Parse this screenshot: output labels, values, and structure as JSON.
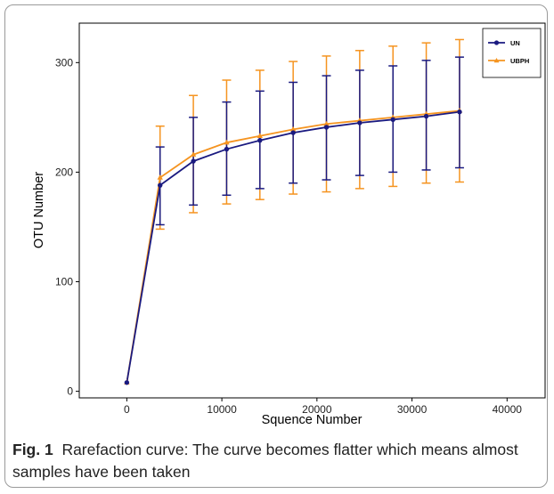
{
  "chart_data": {
    "type": "line",
    "xlabel": "Squence Number",
    "ylabel": "OTU Number",
    "xlim": [
      -5000,
      44000
    ],
    "ylim": [
      -6,
      336
    ],
    "xticks": [
      0,
      10000,
      20000,
      30000,
      40000
    ],
    "xtick_labels": [
      "0",
      "10000",
      "20000",
      "30000",
      "40000"
    ],
    "yticks": [
      0,
      100,
      200,
      300
    ],
    "ytick_labels": [
      "0",
      "100",
      "200",
      "300"
    ],
    "grid": false,
    "legend_position": "top-right",
    "x": [
      0,
      3500,
      7000,
      10500,
      14000,
      17500,
      21000,
      24500,
      28000,
      31500,
      35000
    ],
    "series": [
      {
        "name": "UN",
        "color": "#1a1a80",
        "marker": "circle",
        "values": [
          8,
          188,
          210,
          221,
          229,
          236,
          241,
          245,
          248,
          251,
          255
        ],
        "err_low": [
          8,
          152,
          170,
          179,
          185,
          190,
          193,
          197,
          200,
          202,
          204
        ],
        "err_high": [
          8,
          223,
          250,
          264,
          274,
          282,
          288,
          293,
          297,
          302,
          305
        ]
      },
      {
        "name": "UBPH",
        "color": "#f59420",
        "marker": "triangle",
        "values": [
          8,
          195,
          216,
          227,
          233,
          239,
          244,
          247,
          250,
          253,
          256
        ],
        "err_low": [
          8,
          148,
          163,
          171,
          175,
          180,
          182,
          185,
          187,
          190,
          191
        ],
        "err_high": [
          8,
          242,
          270,
          284,
          293,
          301,
          306,
          311,
          315,
          318,
          321
        ]
      }
    ]
  },
  "caption": {
    "label": "Fig. 1",
    "text": "Rarefaction curve: The curve becomes flatter which means almost samples have been taken"
  }
}
